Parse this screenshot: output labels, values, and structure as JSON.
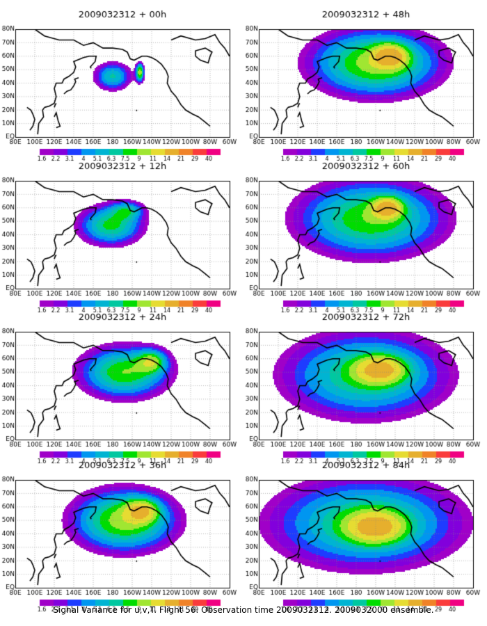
{
  "chart_data": {
    "type": "heatmap",
    "caption": "Signal Variance for u,v,T. Flight 56. Observation time 2009032312. 2009032000 ensemble.",
    "colorbar": {
      "labels": [
        "1.6",
        "2.2",
        "3.1",
        "4",
        "5.1",
        "6.3",
        "7.5",
        "9",
        "11",
        "14",
        "21",
        "29",
        "40"
      ],
      "colors": [
        "#a000c8",
        "#8200dc",
        "#1e3cff",
        "#0096f0",
        "#00b4d2",
        "#00c8a0",
        "#00dc00",
        "#a0e632",
        "#e6dc32",
        "#e6af2d",
        "#f08228",
        "#fa3c3c",
        "#f00082"
      ]
    },
    "x_ticks": [
      "80E",
      "100E",
      "120E",
      "140E",
      "160E",
      "180",
      "160W",
      "140W",
      "120W",
      "100W",
      "80W",
      "60W"
    ],
    "y_ticks": [
      "EQ",
      "10N",
      "20N",
      "30N",
      "40N",
      "50N",
      "60N",
      "70N",
      "80N"
    ],
    "panels": [
      {
        "title": "2009032312 + 00h",
        "lead_h": 0,
        "blobs": [
          {
            "lon": 180,
            "lat": 45,
            "rx": 22,
            "ry": 12,
            "peak": 6.5
          },
          {
            "lon": -152,
            "lat": 48,
            "rx": 5,
            "ry": 8,
            "peak": 10
          }
        ]
      },
      {
        "title": "2009032312 + 12h",
        "lead_h": 12,
        "blobs": [
          {
            "lon": 178,
            "lat": 47,
            "rx": 38,
            "ry": 17,
            "peak": 8
          },
          {
            "lon": -165,
            "lat": 58,
            "rx": 20,
            "ry": 8,
            "peak": 5
          }
        ]
      },
      {
        "title": "2009032312 + 24h",
        "lead_h": 24,
        "blobs": [
          {
            "lon": -168,
            "lat": 50,
            "rx": 52,
            "ry": 22,
            "peak": 9
          },
          {
            "lon": -140,
            "lat": 58,
            "rx": 18,
            "ry": 10,
            "peak": 7
          }
        ]
      },
      {
        "title": "2009032312 + 36h",
        "lead_h": 36,
        "blobs": [
          {
            "lon": -168,
            "lat": 50,
            "rx": 60,
            "ry": 26,
            "peak": 10
          },
          {
            "lon": -150,
            "lat": 57,
            "rx": 20,
            "ry": 10,
            "peak": 9
          }
        ]
      },
      {
        "title": "2009032312 + 48h",
        "lead_h": 48,
        "blobs": [
          {
            "lon": -160,
            "lat": 55,
            "rx": 75,
            "ry": 28,
            "peak": 10
          },
          {
            "lon": -145,
            "lat": 60,
            "rx": 20,
            "ry": 10,
            "peak": 11
          }
        ]
      },
      {
        "title": "2009032312 + 60h",
        "lead_h": 60,
        "blobs": [
          {
            "lon": -165,
            "lat": 52,
            "rx": 85,
            "ry": 32,
            "peak": 9
          },
          {
            "lon": -148,
            "lat": 60,
            "rx": 18,
            "ry": 9,
            "peak": 11
          }
        ]
      },
      {
        "title": "2009032312 + 72h",
        "lead_h": 72,
        "blobs": [
          {
            "lon": -170,
            "lat": 48,
            "rx": 95,
            "ry": 36,
            "peak": 8
          },
          {
            "lon": -155,
            "lat": 52,
            "rx": 30,
            "ry": 12,
            "peak": 10
          }
        ]
      },
      {
        "title": "2009032312 + 84h",
        "lead_h": 84,
        "blobs": [
          {
            "lon": -170,
            "lat": 48,
            "rx": 110,
            "ry": 38,
            "peak": 8
          },
          {
            "lon": -160,
            "lat": 45,
            "rx": 35,
            "ry": 14,
            "peak": 10
          }
        ]
      }
    ]
  }
}
